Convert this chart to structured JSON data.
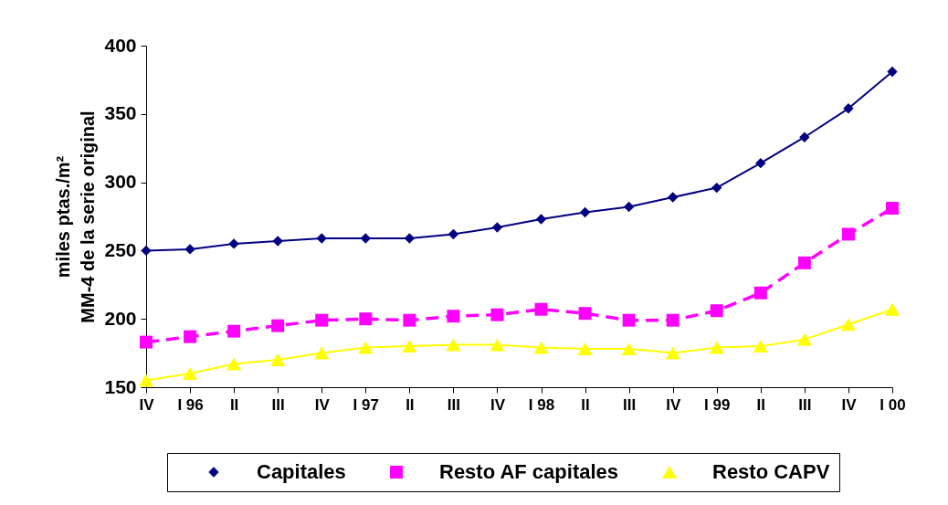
{
  "chart_data": {
    "type": "line",
    "ylabel": "miles ptas./m²\nMM-4 de la serie original",
    "categories": [
      "IV",
      "I 96",
      "II",
      "III",
      "IV",
      "I 97",
      "II",
      "III",
      "IV",
      "I 98",
      "II",
      "III",
      "IV",
      "I 99",
      "II",
      "III",
      "IV",
      "I 00"
    ],
    "series": [
      {
        "name": "Capitales",
        "color": "#000080",
        "marker": "diamond",
        "line_style": "solid",
        "values": [
          250,
          251,
          255,
          257,
          259,
          259,
          259,
          262,
          267,
          273,
          278,
          282,
          289,
          296,
          314,
          333,
          354,
          381
        ]
      },
      {
        "name": "Resto AF capitales",
        "color": "#ff00ff",
        "marker": "square",
        "line_style": "dashed",
        "values": [
          183,
          187,
          191,
          195,
          199,
          200,
          199,
          202,
          203,
          207,
          204,
          199,
          199,
          206,
          219,
          241,
          262,
          281
        ]
      },
      {
        "name": "Resto CAPV",
        "color": "#ffff00",
        "marker": "triangle",
        "line_style": "solid",
        "values": [
          155,
          160,
          167,
          170,
          175,
          179,
          180,
          181,
          181,
          179,
          178,
          178,
          175,
          179,
          180,
          185,
          196,
          207
        ]
      }
    ],
    "ylim": [
      150,
      400
    ],
    "yticks": [
      150,
      200,
      250,
      300,
      350,
      400
    ],
    "grid": false,
    "legend": "bottom"
  }
}
